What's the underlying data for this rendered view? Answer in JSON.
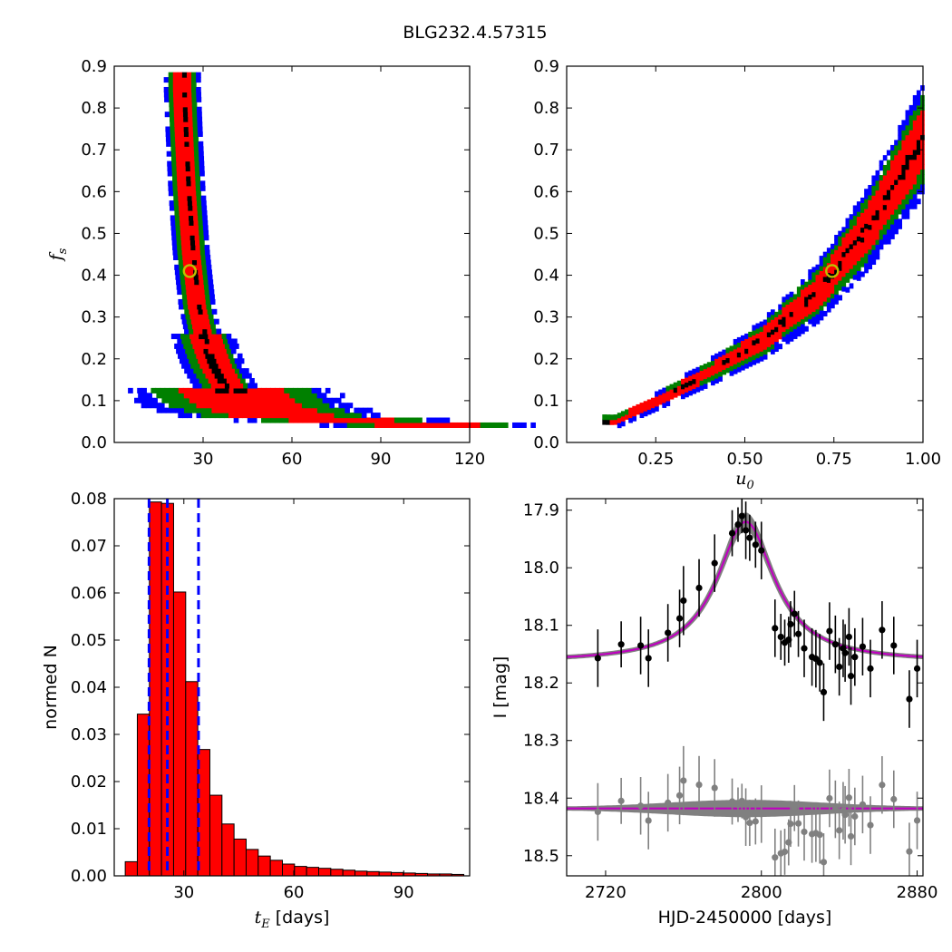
{
  "suptitle": "BLG232.4.57315",
  "colors": {
    "level_black": "#000000",
    "level_red": "#ff0000",
    "level_green": "#008000",
    "level_blue": "#0000ff",
    "marker": "#bfbf00",
    "hist_fill": "#ff0000",
    "hist_edge": "#000000",
    "quantile_line": "#0000ff",
    "model_band": "#808080",
    "model_line": "#bf00bf",
    "data": "#000000",
    "residuals": "#808080"
  },
  "chart_data": [
    {
      "name": "tE_vs_fs",
      "type": "heatmap",
      "xlabel": "",
      "ylabel": "f_s",
      "xlim": [
        0,
        120
      ],
      "ylim": [
        0,
        0.9
      ],
      "xticks": [
        "30",
        "60",
        "90",
        "120"
      ],
      "yticks": [
        "0.0",
        "0.1",
        "0.2",
        "0.3",
        "0.4",
        "0.5",
        "0.6",
        "0.7",
        "0.8",
        "0.9"
      ],
      "levels": [
        "black",
        "red",
        "green",
        "blue"
      ],
      "ridge": [
        [
          16,
          0.05
        ],
        [
          20,
          0.4
        ],
        [
          24,
          0.62
        ],
        [
          26,
          0.88
        ]
      ],
      "ridge_points": [
        [
          22.5,
          0.84
        ],
        [
          23.0,
          0.75
        ],
        [
          24.0,
          0.6
        ],
        [
          25.5,
          0.45
        ],
        [
          27.5,
          0.32
        ],
        [
          30.0,
          0.24
        ],
        [
          33.0,
          0.18
        ],
        [
          37.0,
          0.13
        ],
        [
          44.0,
          0.085
        ],
        [
          55.0,
          0.06
        ],
        [
          75.0,
          0.048
        ],
        [
          105.0,
          0.042
        ]
      ],
      "best_fit": [
        25.5,
        0.41
      ]
    },
    {
      "name": "u0_vs_fs",
      "type": "heatmap",
      "xlabel": "u_0",
      "ylabel": "",
      "xlim": [
        0,
        1.0
      ],
      "ylim": [
        0,
        0.9
      ],
      "xticks": [
        "0.25",
        "0.50",
        "0.75",
        "1.00"
      ],
      "yticks": [
        "0.0",
        "0.1",
        "0.2",
        "0.3",
        "0.4",
        "0.5",
        "0.6",
        "0.7",
        "0.8",
        "0.9"
      ],
      "levels": [
        "black",
        "red",
        "green",
        "blue"
      ],
      "ridge_points": [
        [
          0.13,
          0.045
        ],
        [
          0.25,
          0.095
        ],
        [
          0.4,
          0.165
        ],
        [
          0.55,
          0.245
        ],
        [
          0.7,
          0.355
        ],
        [
          0.85,
          0.52
        ],
        [
          1.0,
          0.73
        ]
      ],
      "best_fit": [
        0.745,
        0.41
      ]
    },
    {
      "name": "tE_histogram",
      "type": "bar",
      "xlabel": "t_E [days]",
      "ylabel": "normed N",
      "xlim": [
        11,
        108
      ],
      "ylim": [
        0,
        0.08
      ],
      "xticks": [
        "30",
        "60",
        "90"
      ],
      "yticks": [
        "0.00",
        "0.01",
        "0.02",
        "0.03",
        "0.04",
        "0.05",
        "0.06",
        "0.07",
        "0.08"
      ],
      "bin_edges": [
        14.0,
        17.3,
        20.6,
        23.9,
        27.2,
        30.5,
        33.8,
        37.1,
        40.4,
        43.7,
        47.0,
        50.3,
        53.6,
        56.9,
        60.2,
        63.5,
        66.8,
        70.1,
        73.4,
        76.7,
        80.0,
        83.3,
        86.6,
        89.9,
        93.2,
        96.5,
        99.8,
        103.1,
        106.4
      ],
      "values": [
        0.003,
        0.0343,
        0.0793,
        0.079,
        0.0602,
        0.0412,
        0.0268,
        0.0171,
        0.011,
        0.0078,
        0.0056,
        0.0042,
        0.0033,
        0.0025,
        0.002,
        0.0018,
        0.0016,
        0.0014,
        0.0012,
        0.001,
        0.0009,
        0.0008,
        0.0007,
        0.0006,
        0.0005,
        0.0004,
        0.0004,
        0.0003
      ],
      "quantile_lines": [
        20.5,
        25.5,
        34.0
      ]
    },
    {
      "name": "light_curve",
      "type": "scatter",
      "xlabel": "HJD-2450000 [days]",
      "ylabel": "I [mag]",
      "xlim": [
        2700,
        2883
      ],
      "ylim": [
        18.535,
        17.88
      ],
      "y_inverted": true,
      "xticks": [
        "2720",
        "2800",
        "2880"
      ],
      "yticks": [
        "17.9",
        "18.0",
        "18.1",
        "18.2",
        "18.3",
        "18.4",
        "18.5"
      ],
      "model": {
        "t0": 2792,
        "peak": 17.92,
        "base": 18.164,
        "width": 18
      },
      "residual_offset": 18.418,
      "data_points": [
        [
          2716,
          18.157,
          0.05
        ],
        [
          2728,
          18.133,
          0.04
        ],
        [
          2738,
          18.135,
          0.05
        ],
        [
          2742,
          18.157,
          0.05
        ],
        [
          2752,
          18.113,
          0.05
        ],
        [
          2758,
          18.088,
          0.05
        ],
        [
          2760,
          18.057,
          0.06
        ],
        [
          2768,
          18.035,
          0.05
        ],
        [
          2776,
          17.992,
          0.05
        ],
        [
          2785,
          17.94,
          0.04
        ],
        [
          2788,
          17.925,
          0.03
        ],
        [
          2790,
          17.91,
          0.03
        ],
        [
          2792,
          17.935,
          0.05
        ],
        [
          2794,
          17.948,
          0.04
        ],
        [
          2797,
          17.96,
          0.04
        ],
        [
          2800,
          17.97,
          0.05
        ],
        [
          2807,
          18.105,
          0.05
        ],
        [
          2810,
          18.12,
          0.04
        ],
        [
          2812,
          18.13,
          0.04
        ],
        [
          2814,
          18.125,
          0.04
        ],
        [
          2815,
          18.098,
          0.04
        ],
        [
          2817,
          18.08,
          0.04
        ],
        [
          2819,
          18.115,
          0.04
        ],
        [
          2822,
          18.14,
          0.05
        ],
        [
          2826,
          18.155,
          0.05
        ],
        [
          2828,
          18.158,
          0.05
        ],
        [
          2830,
          18.165,
          0.05
        ],
        [
          2832,
          18.216,
          0.05
        ],
        [
          2835,
          18.11,
          0.05
        ],
        [
          2838,
          18.133,
          0.05
        ],
        [
          2840,
          18.172,
          0.05
        ],
        [
          2842,
          18.14,
          0.05
        ],
        [
          2843,
          18.148,
          0.05
        ],
        [
          2845,
          18.12,
          0.05
        ],
        [
          2846,
          18.188,
          0.05
        ],
        [
          2848,
          18.155,
          0.05
        ],
        [
          2852,
          18.137,
          0.05
        ],
        [
          2856,
          18.175,
          0.05
        ],
        [
          2862,
          18.108,
          0.05
        ],
        [
          2868,
          18.135,
          0.05
        ],
        [
          2876,
          18.228,
          0.05
        ],
        [
          2880,
          18.175,
          0.05
        ]
      ]
    }
  ]
}
